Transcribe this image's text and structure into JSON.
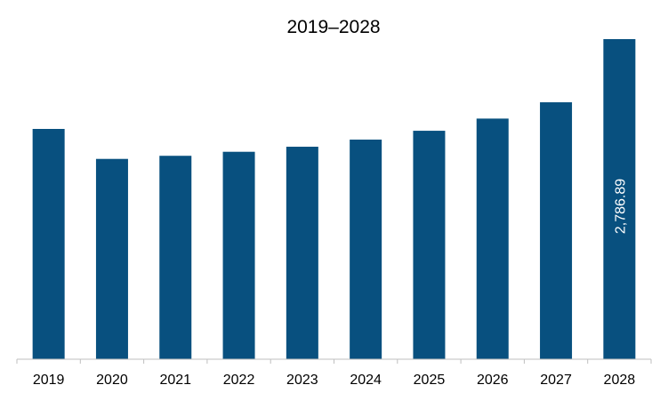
{
  "chart_data": {
    "type": "bar",
    "title": "2019–2028",
    "xlabel": "",
    "ylabel": "",
    "categories": [
      "2019",
      "2020",
      "2021",
      "2022",
      "2023",
      "2024",
      "2025",
      "2026",
      "2027",
      "2028"
    ],
    "series": [
      {
        "values": [
          2005,
          1744,
          1771,
          1806,
          1850,
          1912,
          1989,
          2095,
          2237,
          2786.89
        ],
        "data_labels": [
          "",
          "",
          "",
          "",
          "",
          "",
          "",
          "",
          "",
          "2,786.89"
        ]
      }
    ],
    "ylim": [
      0,
      2786.89
    ],
    "grid": false,
    "legend": "none",
    "colors": {
      "bar": "#08507f",
      "label": "#ffffff",
      "title": "#000000",
      "axis": "#bfbfbf"
    }
  }
}
